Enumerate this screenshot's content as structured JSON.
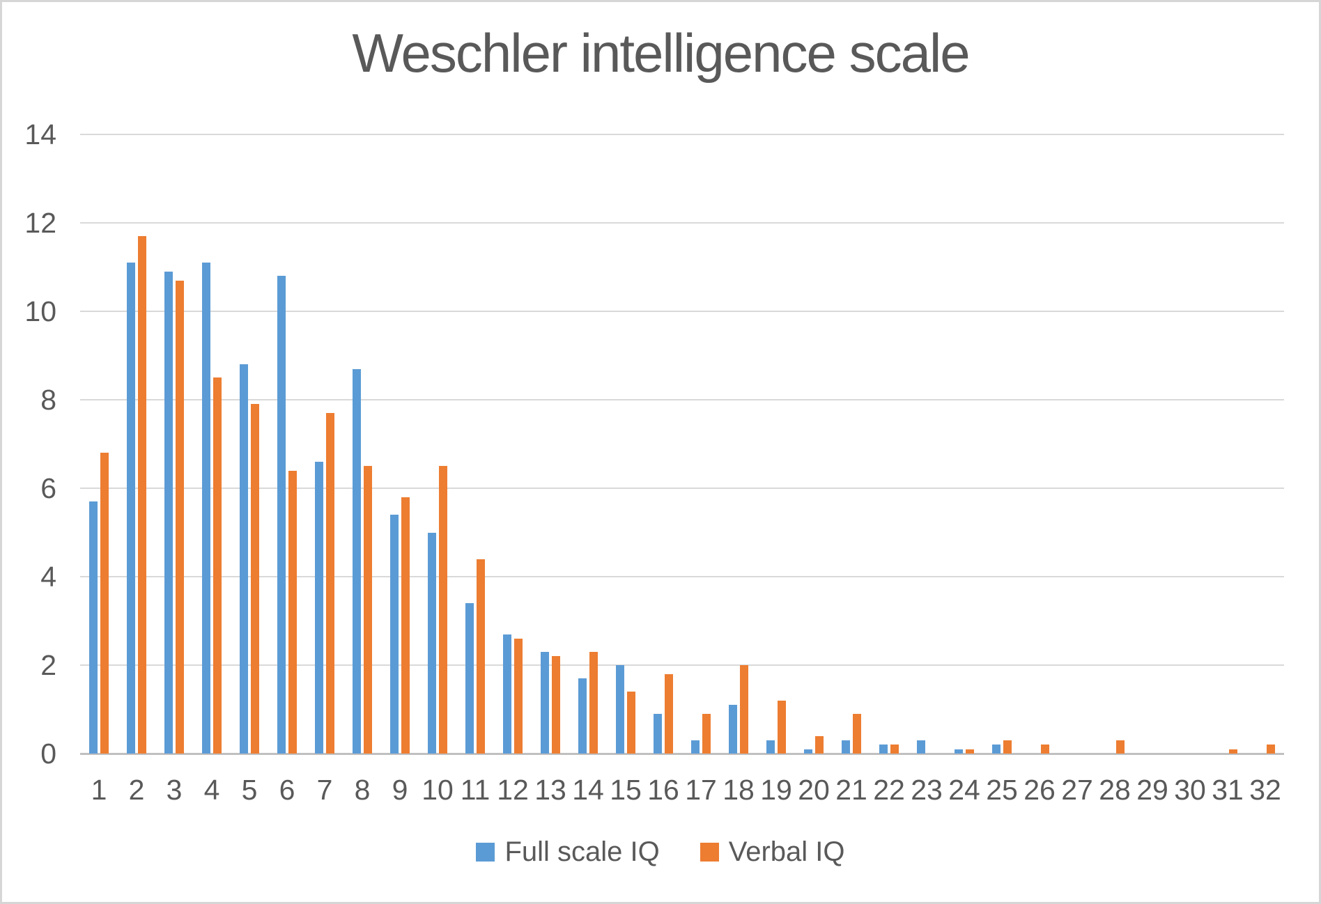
{
  "chart_data": {
    "type": "bar",
    "title": "Weschler intelligence scale",
    "categories": [
      "1",
      "2",
      "3",
      "4",
      "5",
      "6",
      "7",
      "8",
      "9",
      "10",
      "11",
      "12",
      "13",
      "14",
      "15",
      "16",
      "17",
      "18",
      "19",
      "20",
      "21",
      "22",
      "23",
      "24",
      "25",
      "26",
      "27",
      "28",
      "29",
      "30",
      "31",
      "32"
    ],
    "series": [
      {
        "name": "Full scale IQ",
        "color": "#5B9BD5",
        "values": [
          5.7,
          11.1,
          10.9,
          11.1,
          8.8,
          10.8,
          6.6,
          8.7,
          5.4,
          5.0,
          3.4,
          2.7,
          2.3,
          1.7,
          2.0,
          0.9,
          0.3,
          1.1,
          0.3,
          0.1,
          0.3,
          0.2,
          0.3,
          0.1,
          0.2,
          0,
          0,
          0,
          0,
          0,
          0,
          0
        ]
      },
      {
        "name": "Verbal IQ",
        "color": "#ED7D31",
        "values": [
          6.8,
          11.7,
          10.7,
          8.5,
          7.9,
          6.4,
          7.7,
          6.5,
          5.8,
          6.5,
          4.4,
          2.6,
          2.2,
          2.3,
          1.4,
          1.8,
          0.9,
          2.0,
          1.2,
          0.4,
          0.9,
          0.2,
          0,
          0.1,
          0.3,
          0.2,
          0,
          0.3,
          0,
          0,
          0.1,
          0.2
        ]
      }
    ],
    "xlabel": "",
    "ylabel": "",
    "ylim": [
      0,
      14
    ],
    "yticks": [
      0,
      2,
      4,
      6,
      8,
      10,
      12,
      14
    ],
    "grid": true,
    "legend_position": "bottom",
    "colors": {
      "title_text": "#595959",
      "axis_text": "#595959",
      "gridline": "#D9D9D9",
      "axis_line": "#C0C0C0",
      "background": "#FFFFFF"
    }
  }
}
